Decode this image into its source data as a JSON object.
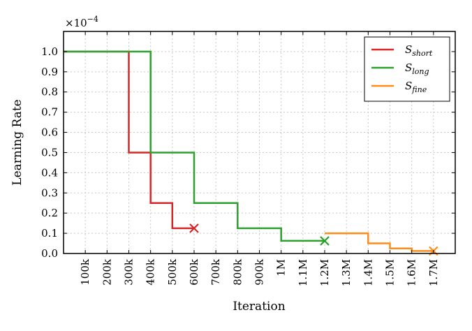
{
  "chart_data": {
    "type": "line",
    "xlabel": "Iteration",
    "ylabel": "Learning Rate",
    "scale_label": "×10",
    "scale_exponent": "−4",
    "xlim": [
      0,
      1800000
    ],
    "ylim": [
      0,
      1.1
    ],
    "x_ticks": [
      {
        "value": 100000,
        "label": "100k"
      },
      {
        "value": 200000,
        "label": "200k"
      },
      {
        "value": 300000,
        "label": "300k"
      },
      {
        "value": 400000,
        "label": "400k"
      },
      {
        "value": 500000,
        "label": "500k"
      },
      {
        "value": 600000,
        "label": "600k"
      },
      {
        "value": 700000,
        "label": "700k"
      },
      {
        "value": 800000,
        "label": "800k"
      },
      {
        "value": 900000,
        "label": "900k"
      },
      {
        "value": 1000000,
        "label": "1M"
      },
      {
        "value": 1100000,
        "label": "1.1M"
      },
      {
        "value": 1200000,
        "label": "1.2M"
      },
      {
        "value": 1300000,
        "label": "1.3M"
      },
      {
        "value": 1400000,
        "label": "1.4M"
      },
      {
        "value": 1500000,
        "label": "1.5M"
      },
      {
        "value": 1600000,
        "label": "1.6M"
      },
      {
        "value": 1700000,
        "label": "1.7M"
      }
    ],
    "y_ticks": [
      {
        "value": 0.0,
        "label": "0.0"
      },
      {
        "value": 0.1,
        "label": "0.1"
      },
      {
        "value": 0.2,
        "label": "0.2"
      },
      {
        "value": 0.3,
        "label": "0.3"
      },
      {
        "value": 0.4,
        "label": "0.4"
      },
      {
        "value": 0.5,
        "label": "0.5"
      },
      {
        "value": 0.6,
        "label": "0.6"
      },
      {
        "value": 0.7,
        "label": "0.7"
      },
      {
        "value": 0.8,
        "label": "0.8"
      },
      {
        "value": 0.9,
        "label": "0.9"
      },
      {
        "value": 1.0,
        "label": "1.0"
      }
    ],
    "grid": true,
    "legend_position": "top-right",
    "series": [
      {
        "name": "S",
        "subscript": "short",
        "color": "#d62728",
        "points": [
          [
            0,
            1.0
          ],
          [
            300000,
            1.0
          ],
          [
            300000,
            0.5
          ],
          [
            400000,
            0.5
          ],
          [
            400000,
            0.25
          ],
          [
            500000,
            0.25
          ],
          [
            500000,
            0.125
          ],
          [
            600000,
            0.125
          ]
        ],
        "end_marker": {
          "x": 600000,
          "y": 0.125,
          "shape": "x"
        }
      },
      {
        "name": "S",
        "subscript": "long",
        "color": "#2ca02c",
        "points": [
          [
            0,
            1.0
          ],
          [
            400000,
            1.0
          ],
          [
            400000,
            0.5
          ],
          [
            600000,
            0.5
          ],
          [
            600000,
            0.25
          ],
          [
            800000,
            0.25
          ],
          [
            800000,
            0.125
          ],
          [
            1000000,
            0.125
          ],
          [
            1000000,
            0.0625
          ],
          [
            1200000,
            0.0625
          ]
        ],
        "end_marker": {
          "x": 1200000,
          "y": 0.0625,
          "shape": "x"
        }
      },
      {
        "name": "S",
        "subscript": "fine",
        "color": "#ff8c1a",
        "points": [
          [
            1200000,
            0.1
          ],
          [
            1400000,
            0.1
          ],
          [
            1400000,
            0.05
          ],
          [
            1500000,
            0.05
          ],
          [
            1500000,
            0.025
          ],
          [
            1600000,
            0.025
          ],
          [
            1600000,
            0.0125
          ],
          [
            1700000,
            0.0125
          ]
        ],
        "end_marker": {
          "x": 1700000,
          "y": 0.0125,
          "shape": "x"
        }
      }
    ]
  }
}
